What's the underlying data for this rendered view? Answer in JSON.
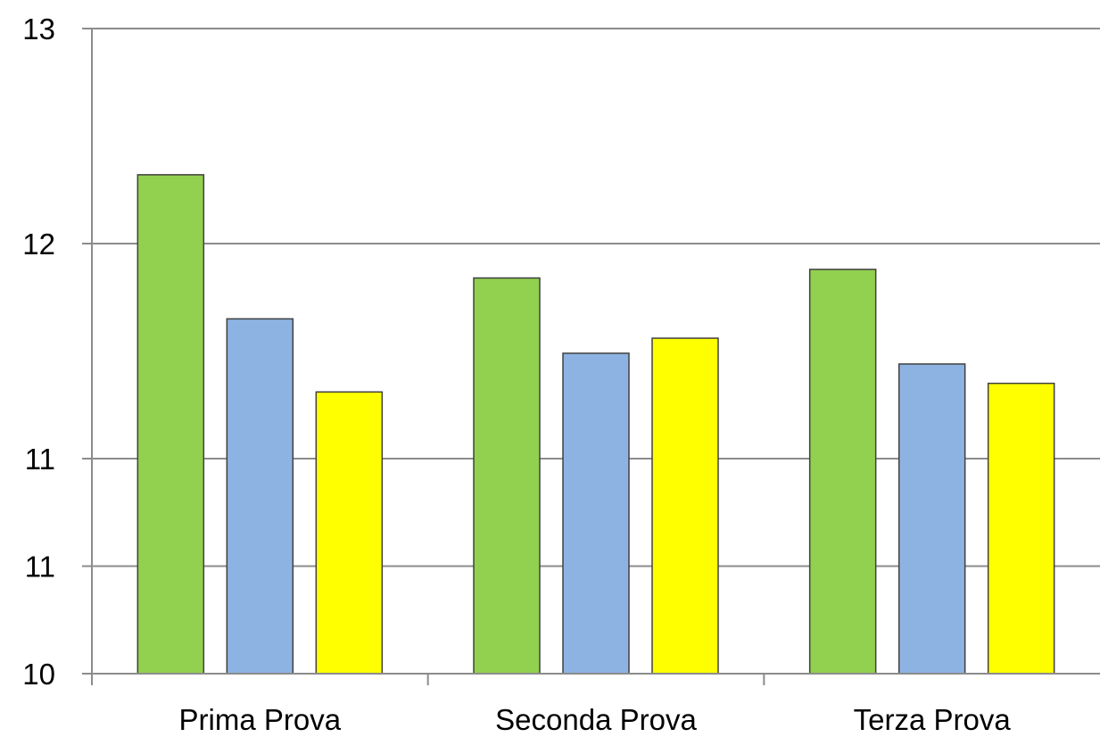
{
  "chart_data": {
    "type": "bar",
    "title": "",
    "xlabel": "",
    "ylabel": "",
    "categories": [
      "Prima Prova",
      "Seconda Prova",
      "Terza Prova"
    ],
    "series": [
      {
        "color": "#92D050",
        "values": [
          12.32,
          11.84,
          11.88
        ]
      },
      {
        "color": "#8DB3E2",
        "values": [
          11.65,
          11.49,
          11.44
        ]
      },
      {
        "color": "#FFFF00",
        "values": [
          11.31,
          11.56,
          11.35
        ]
      }
    ],
    "ylim": [
      10,
      13
    ],
    "yticks": [
      10,
      10.5,
      11,
      11.5,
      12,
      12.5,
      13
    ],
    "ytick_labels": [
      "10",
      "11",
      "11",
      "12",
      "12",
      "13",
      "13"
    ],
    "visible_ytick_values": [
      10,
      10.5,
      11,
      12,
      13
    ],
    "grid": true,
    "legend": "none"
  }
}
